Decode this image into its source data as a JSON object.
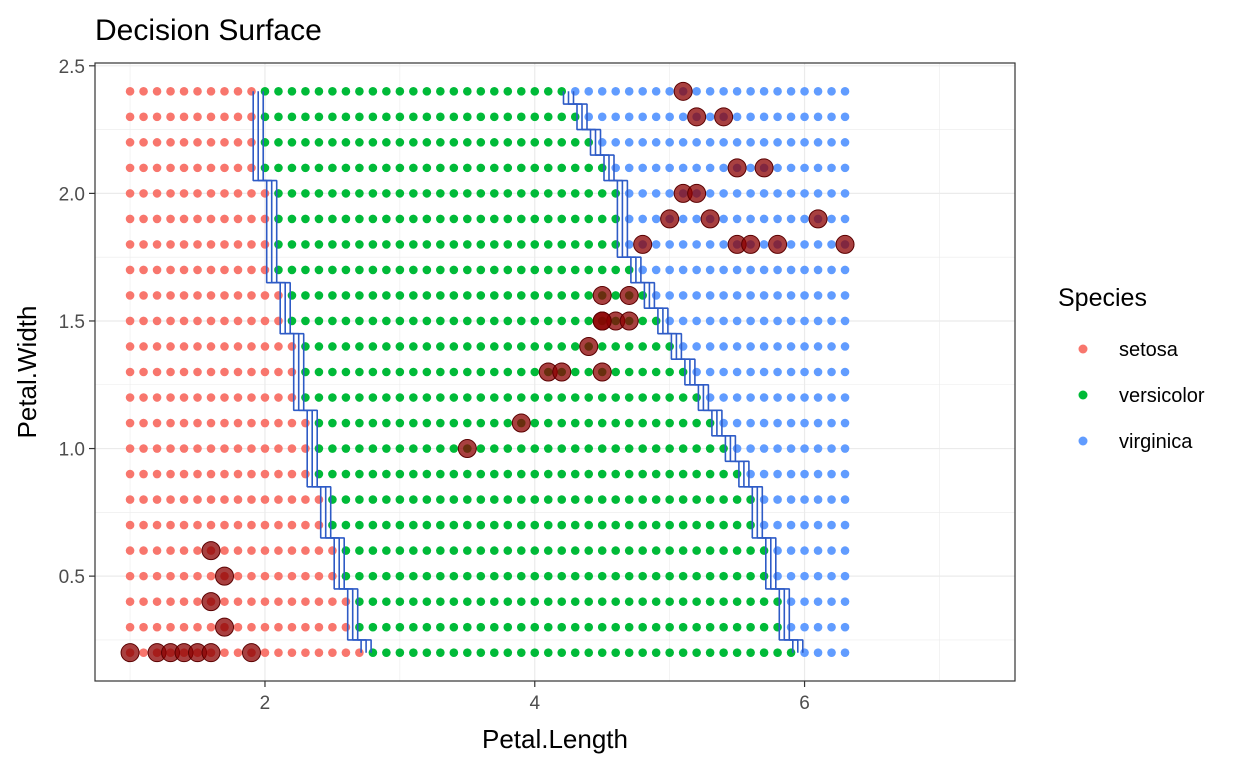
{
  "chart_data": {
    "type": "scatter",
    "title": "Decision Surface",
    "xlabel": "Petal.Length",
    "ylabel": "Petal.Width",
    "xlim": [
      0.74,
      7.56
    ],
    "ylim": [
      0.089,
      2.511
    ],
    "x_ticks": [
      2,
      4,
      6
    ],
    "x_tick_labels": [
      "2",
      "4",
      "6"
    ],
    "y_ticks": [
      0.5,
      1.0,
      1.5,
      2.0,
      2.5
    ],
    "y_tick_labels": [
      "0.5",
      "1.0",
      "1.5",
      "2.0",
      "2.5"
    ],
    "grid": true,
    "legend": {
      "title": "Species",
      "placement": "right",
      "entries": [
        {
          "label": "setosa",
          "color": "#F8766D"
        },
        {
          "label": "versicolor",
          "color": "#00BA38"
        },
        {
          "label": "virginica",
          "color": "#619CFF"
        }
      ]
    },
    "surface": {
      "x_start": 1.0,
      "x_step": 0.1,
      "x_count": 54,
      "y_start": 0.2,
      "y_step": 0.1,
      "y_count": 23,
      "setosa_versicolor_boundary": [
        2.75,
        2.65,
        2.65,
        2.55,
        2.55,
        2.45,
        2.45,
        2.35,
        2.35,
        2.35,
        2.25,
        2.25,
        2.25,
        2.15,
        2.15,
        2.05,
        2.05,
        2.05,
        2.05,
        1.95,
        1.95,
        1.95,
        1.95
      ],
      "versicolor_virginica_boundary": [
        5.95,
        5.85,
        5.85,
        5.75,
        5.75,
        5.65,
        5.65,
        5.55,
        5.45,
        5.35,
        5.25,
        5.15,
        5.05,
        4.95,
        4.85,
        4.75,
        4.65,
        4.65,
        4.65,
        4.55,
        4.45,
        4.35,
        4.25
      ],
      "boundary_color": "#2E5BC6"
    },
    "observations": {
      "color": "#8B0000",
      "x": [
        1.0,
        1.2,
        1.3,
        1.4,
        1.5,
        1.6,
        1.9,
        1.6,
        1.7,
        1.6,
        1.7,
        3.5,
        3.9,
        4.1,
        4.2,
        4.4,
        4.5,
        4.5,
        4.6,
        4.7,
        4.5,
        4.7,
        4.5,
        4.8,
        5.5,
        5.6,
        5.8,
        6.3,
        5.0,
        5.3,
        6.1,
        5.1,
        5.2,
        5.5,
        5.7,
        5.2,
        5.4,
        5.1
      ],
      "y": [
        0.2,
        0.2,
        0.2,
        0.2,
        0.2,
        0.2,
        0.2,
        0.6,
        0.5,
        0.4,
        0.3,
        1.0,
        1.1,
        1.3,
        1.3,
        1.4,
        1.3,
        1.5,
        1.5,
        1.5,
        1.6,
        1.6,
        1.5,
        1.8,
        1.8,
        1.8,
        1.8,
        1.8,
        1.9,
        1.9,
        1.9,
        2.0,
        2.0,
        2.1,
        2.1,
        2.3,
        2.3,
        2.4
      ]
    }
  }
}
